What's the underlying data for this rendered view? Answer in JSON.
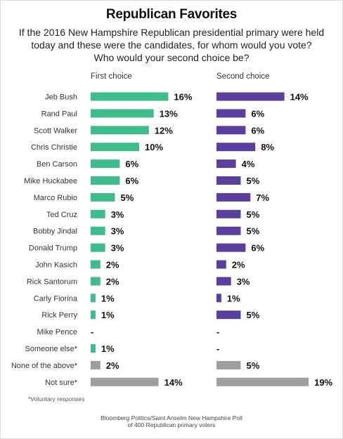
{
  "title": "Republican Favorites",
  "subtitle": [
    "If the 2016 New Hampshire Republican presidential primary were held",
    "today and these were the candidates, for whom would you vote?",
    "Who would your second choice be?"
  ],
  "first_header": "First choice",
  "second_header": "Second choice",
  "footnote": "*Voluntary responses",
  "source": [
    "Bloomberg Politics/Saint Anselm New Hampshire Poll",
    "of 400 Republican primary voters"
  ],
  "colors": {
    "first": "#3dbd8c",
    "second": "#5b3f9e",
    "other": "#9e9e9e"
  },
  "chart_data": {
    "type": "bar",
    "orientation": "horizontal",
    "categories": [
      "Jeb Bush",
      "Rand Paul",
      "Scott Walker",
      "Chris Christie",
      "Ben Carson",
      "Mike Huckabee",
      "Marco Rubio",
      "Ted Cruz",
      "Bobby Jindal",
      "Donald Trump",
      "John Kasich",
      "Rick Santorum",
      "Carly Fiorina",
      "Rick Perry",
      "Mike Pence",
      "Someone else*",
      "None of the above*",
      "Not sure*"
    ],
    "series": [
      {
        "name": "First choice",
        "values": [
          16,
          13,
          12,
          10,
          6,
          6,
          5,
          3,
          3,
          3,
          2,
          2,
          1,
          1,
          null,
          1,
          2,
          14
        ],
        "labels": [
          "16%",
          "13%",
          "12%",
          "10%",
          "6%",
          "6%",
          "5%",
          "3%",
          "3%",
          "3%",
          "2%",
          "2%",
          "1%",
          "1%",
          "-",
          "1%",
          "2%",
          "14%"
        ]
      },
      {
        "name": "Second choice",
        "values": [
          14,
          6,
          6,
          8,
          4,
          5,
          7,
          5,
          5,
          6,
          2,
          3,
          1,
          5,
          null,
          null,
          5,
          19
        ],
        "labels": [
          "14%",
          "6%",
          "6%",
          "8%",
          "4%",
          "5%",
          "7%",
          "5%",
          "5%",
          "6%",
          "2%",
          "3%",
          "1%",
          "5%",
          "-",
          "-",
          "5%",
          "19%"
        ]
      }
    ],
    "gray_categories": [
      "None of the above*",
      "Not sure*"
    ]
  }
}
